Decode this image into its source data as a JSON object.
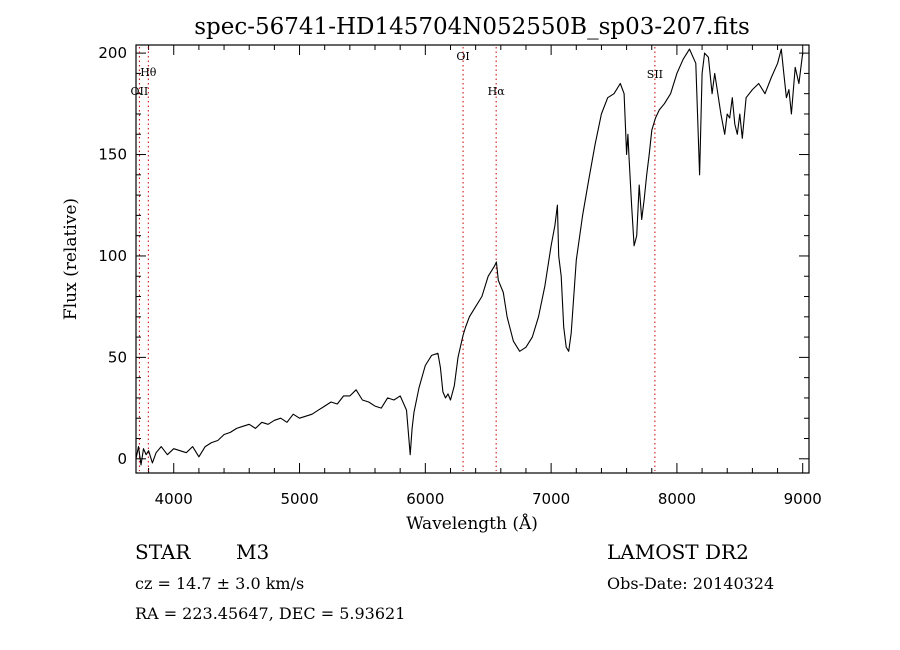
{
  "chart_data": {
    "type": "line",
    "title": "spec-56741-HD145704N052550B_sp03-207.fits",
    "xlabel": "Wavelength (Å)",
    "ylabel": "Flux (relative)",
    "xlim": [
      3700,
      9050
    ],
    "ylim": [
      -7,
      204
    ],
    "xticks": [
      4000,
      5000,
      6000,
      7000,
      8000,
      9000
    ],
    "yticks": [
      0,
      50,
      100,
      150,
      200
    ],
    "grid": false,
    "line_color": "#000000",
    "marker_color": "#cc0000",
    "line_markers": [
      {
        "label": "Hθ",
        "x": 3798
      },
      {
        "label": "OII",
        "x": 3727
      },
      {
        "label": "OI",
        "x": 6300
      },
      {
        "label": "Hα",
        "x": 6563
      },
      {
        "label": "SII",
        "x": 7825
      }
    ],
    "series": [
      {
        "x": [
          3700,
          3720,
          3740,
          3760,
          3780,
          3800,
          3830,
          3860,
          3900,
          3950,
          4000,
          4050,
          4100,
          4150,
          4200,
          4250,
          4300,
          4350,
          4400,
          4450,
          4500,
          4550,
          4600,
          4650,
          4700,
          4750,
          4800,
          4850,
          4900,
          4950,
          5000,
          5050,
          5100,
          5150,
          5200,
          5250,
          5300,
          5350,
          5400,
          5450,
          5500,
          5550,
          5600,
          5650,
          5700,
          5750,
          5800,
          5850,
          5880,
          5895,
          5910,
          5950,
          6000,
          6050,
          6100,
          6120,
          6140,
          6160,
          6180,
          6200,
          6230,
          6260,
          6300,
          6320,
          6350,
          6400,
          6450,
          6500,
          6550,
          6565,
          6580,
          6620,
          6650,
          6700,
          6750,
          6800,
          6850,
          6900,
          6950,
          7000,
          7030,
          7050,
          7060,
          7080,
          7100,
          7120,
          7140,
          7160,
          7200,
          7250,
          7300,
          7350,
          7400,
          7450,
          7500,
          7550,
          7580,
          7600,
          7610,
          7620,
          7640,
          7660,
          7680,
          7700,
          7720,
          7740,
          7760,
          7780,
          7800,
          7830,
          7860,
          7900,
          7950,
          8000,
          8050,
          8100,
          8150,
          8180,
          8200,
          8220,
          8250,
          8280,
          8300,
          8320,
          8350,
          8380,
          8400,
          8420,
          8440,
          8460,
          8480,
          8500,
          8520,
          8550,
          8600,
          8650,
          8700,
          8750,
          8800,
          8830,
          8850,
          8870,
          8890,
          8910,
          8940,
          8970,
          9000
        ],
        "y": [
          0,
          6,
          -3,
          5,
          2,
          4,
          -2,
          3,
          6,
          2,
          5,
          4,
          3,
          6,
          1,
          6,
          8,
          9,
          12,
          13,
          15,
          16,
          17,
          15,
          18,
          17,
          19,
          20,
          18,
          22,
          20,
          21,
          22,
          24,
          26,
          28,
          27,
          31,
          31,
          34,
          29,
          28,
          26,
          25,
          30,
          29,
          31,
          24,
          2,
          15,
          23,
          35,
          46,
          51,
          52,
          45,
          33,
          30,
          32,
          29,
          36,
          50,
          61,
          65,
          70,
          75,
          80,
          90,
          95,
          97,
          88,
          82,
          70,
          58,
          53,
          55,
          60,
          70,
          85,
          105,
          115,
          125,
          100,
          90,
          65,
          55,
          53,
          62,
          98,
          120,
          138,
          155,
          170,
          178,
          180,
          185,
          180,
          150,
          160,
          148,
          125,
          105,
          110,
          135,
          118,
          128,
          140,
          150,
          162,
          168,
          172,
          175,
          180,
          190,
          197,
          202,
          195,
          140,
          190,
          200,
          198,
          180,
          190,
          182,
          170,
          160,
          170,
          168,
          178,
          165,
          160,
          170,
          158,
          178,
          182,
          185,
          180,
          188,
          195,
          202,
          190,
          178,
          182,
          170,
          193,
          185,
          200
        ]
      }
    ]
  },
  "footer": {
    "object_type": "STAR",
    "subclass": "M3",
    "survey": "LAMOST DR2",
    "redshift": "cz = 14.7 ± 3.0 km/s",
    "obs_date": "Obs-Date: 20140324",
    "coords": "RA = 223.45647, DEC =   5.93621"
  }
}
